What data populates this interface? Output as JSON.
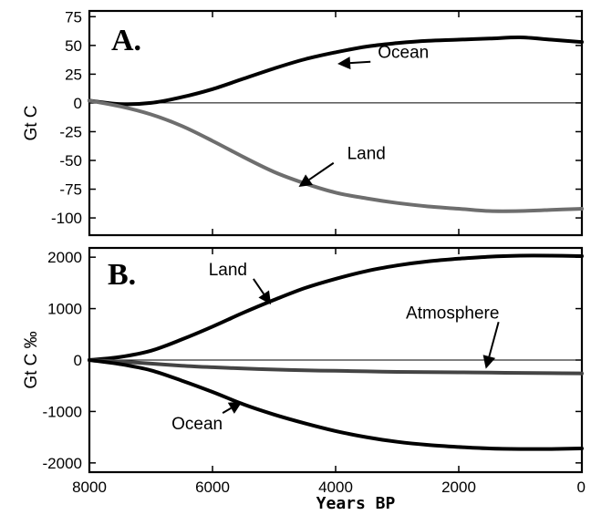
{
  "chart_data": [
    {
      "type": "line",
      "panel_label": "A.",
      "ylabel": "Gt C",
      "xlabel": "",
      "xlim": [
        8000,
        0
      ],
      "ylim": [
        -115,
        80
      ],
      "yticks": [
        75,
        50,
        25,
        0,
        -25,
        -50,
        -75,
        -100
      ],
      "xticks": [
        8000,
        6000,
        4000,
        2000,
        0
      ],
      "zero_line": true,
      "x": [
        8000,
        7500,
        7000,
        6500,
        6000,
        5500,
        5000,
        4500,
        4000,
        3500,
        3000,
        2500,
        2000,
        1500,
        1000,
        500,
        0
      ],
      "series": [
        {
          "name": "Ocean",
          "color": "#000000",
          "values": [
            2,
            -1,
            0,
            5,
            12,
            21,
            30,
            38,
            44,
            49,
            52,
            54,
            55,
            56,
            57,
            55,
            53
          ]
        },
        {
          "name": "Land",
          "color": "#6e6e6e",
          "values": [
            2,
            -3,
            -10,
            -20,
            -33,
            -47,
            -60,
            -70,
            -78,
            -83,
            -87,
            -90,
            -92,
            -94,
            -94,
            -93,
            -92
          ]
        }
      ],
      "annotations": [
        {
          "text": "Ocean",
          "x": 2900,
          "y": 39,
          "arrow_to": [
            3970,
            34
          ]
        },
        {
          "text": "Land",
          "x": 3500,
          "y": -49,
          "arrow_to": [
            4600,
            -73
          ]
        }
      ]
    },
    {
      "type": "line",
      "panel_label": "B.",
      "ylabel": "Gt C ‰",
      "xlabel": "Years BP",
      "xlim": [
        8000,
        0
      ],
      "ylim": [
        -2180,
        2180
      ],
      "yticks": [
        2000,
        1000,
        0,
        -1000,
        -2000
      ],
      "xticks": [
        8000,
        6000,
        4000,
        2000,
        0
      ],
      "xticklabels": [
        "8000",
        "6000",
        "4000",
        "2000",
        "0"
      ],
      "zero_line": true,
      "x": [
        8000,
        7500,
        7000,
        6500,
        6000,
        5500,
        5000,
        4500,
        4000,
        3500,
        3000,
        2500,
        2000,
        1500,
        1000,
        500,
        0
      ],
      "series": [
        {
          "name": "Land",
          "color": "#000000",
          "values": [
            0,
            60,
            180,
            400,
            650,
            920,
            1170,
            1400,
            1580,
            1730,
            1840,
            1920,
            1970,
            2010,
            2030,
            2030,
            2020
          ]
        },
        {
          "name": "Atmosphere",
          "color": "#444444",
          "values": [
            0,
            -30,
            -70,
            -110,
            -140,
            -165,
            -185,
            -200,
            -210,
            -220,
            -230,
            -235,
            -240,
            -245,
            -250,
            -255,
            -260
          ]
        },
        {
          "name": "Ocean",
          "color": "#000000",
          "values": [
            0,
            -80,
            -200,
            -400,
            -620,
            -860,
            -1060,
            -1230,
            -1380,
            -1500,
            -1590,
            -1650,
            -1690,
            -1720,
            -1730,
            -1730,
            -1720
          ]
        }
      ],
      "annotations": [
        {
          "text": "Land",
          "x": 5750,
          "y": 1650,
          "arrow_to": [
            5050,
            1080
          ]
        },
        {
          "text": "Atmosphere",
          "x": 2100,
          "y": 810,
          "arrow_to": [
            1560,
            -170
          ]
        },
        {
          "text": "Ocean",
          "x": 6250,
          "y": -1350,
          "arrow_to": [
            5520,
            -810
          ]
        }
      ]
    }
  ]
}
